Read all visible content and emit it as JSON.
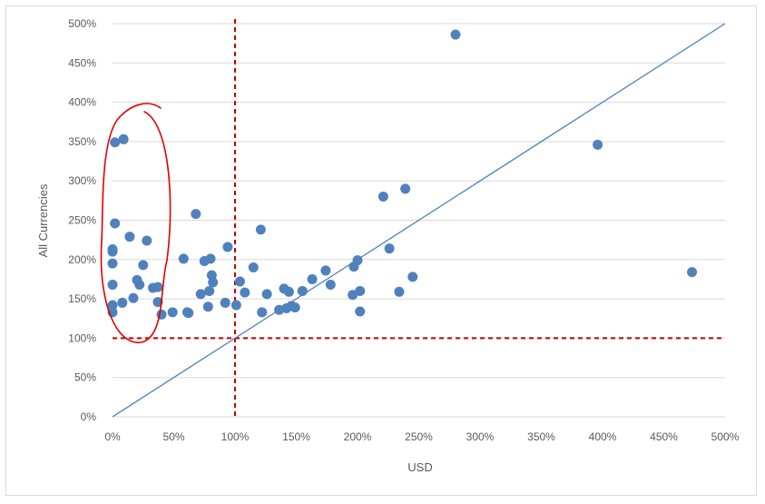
{
  "chart_data": {
    "type": "scatter",
    "title": "",
    "xlabel": "USD",
    "ylabel": "All Currencies",
    "xlim": [
      0,
      500
    ],
    "ylim": [
      0,
      500
    ],
    "x_ticks": [
      "0%",
      "50%",
      "100%",
      "150%",
      "200%",
      "250%",
      "300%",
      "350%",
      "400%",
      "450%",
      "500%"
    ],
    "y_ticks": [
      "0%",
      "50%",
      "100%",
      "150%",
      "200%",
      "250%",
      "300%",
      "350%",
      "400%",
      "450%",
      "500%"
    ],
    "grid": "horizontal",
    "legend": "none",
    "colors": {
      "points": "#4f81bd",
      "diagonal": "#4f81bd",
      "reference_lines": "#c00000",
      "highlight": "#e00000",
      "grid": "#d9d9d9",
      "text": "#595959"
    },
    "reference_lines": {
      "x": 100,
      "y": 100
    },
    "diagonal": {
      "from": [
        0,
        0
      ],
      "to": [
        500,
        500
      ]
    },
    "highlight_region": {
      "x_range": [
        -3,
        40
      ],
      "y_range": [
        95,
        395
      ]
    },
    "points": [
      {
        "x": 0,
        "y": 133
      },
      {
        "x": 0,
        "y": 142
      },
      {
        "x": 0,
        "y": 168
      },
      {
        "x": 0,
        "y": 195
      },
      {
        "x": 0,
        "y": 210
      },
      {
        "x": 0,
        "y": 213
      },
      {
        "x": 2,
        "y": 246
      },
      {
        "x": 2,
        "y": 349
      },
      {
        "x": 9,
        "y": 353
      },
      {
        "x": 8,
        "y": 145
      },
      {
        "x": 14,
        "y": 229
      },
      {
        "x": 17,
        "y": 151
      },
      {
        "x": 20,
        "y": 174
      },
      {
        "x": 22,
        "y": 168
      },
      {
        "x": 25,
        "y": 193
      },
      {
        "x": 28,
        "y": 224
      },
      {
        "x": 33,
        "y": 164
      },
      {
        "x": 37,
        "y": 165
      },
      {
        "x": 37,
        "y": 146
      },
      {
        "x": 40,
        "y": 130
      },
      {
        "x": 49,
        "y": 133
      },
      {
        "x": 58,
        "y": 201
      },
      {
        "x": 61,
        "y": 133
      },
      {
        "x": 62,
        "y": 132
      },
      {
        "x": 68,
        "y": 258
      },
      {
        "x": 72,
        "y": 156
      },
      {
        "x": 75,
        "y": 198
      },
      {
        "x": 78,
        "y": 140
      },
      {
        "x": 79,
        "y": 160
      },
      {
        "x": 80,
        "y": 201
      },
      {
        "x": 81,
        "y": 180
      },
      {
        "x": 82,
        "y": 171
      },
      {
        "x": 92,
        "y": 145
      },
      {
        "x": 94,
        "y": 216
      },
      {
        "x": 101,
        "y": 142
      },
      {
        "x": 104,
        "y": 172
      },
      {
        "x": 108,
        "y": 158
      },
      {
        "x": 115,
        "y": 190
      },
      {
        "x": 121,
        "y": 238
      },
      {
        "x": 122,
        "y": 133
      },
      {
        "x": 126,
        "y": 156
      },
      {
        "x": 136,
        "y": 136
      },
      {
        "x": 140,
        "y": 163
      },
      {
        "x": 142,
        "y": 138
      },
      {
        "x": 144,
        "y": 159
      },
      {
        "x": 146,
        "y": 141
      },
      {
        "x": 149,
        "y": 139
      },
      {
        "x": 155,
        "y": 160
      },
      {
        "x": 163,
        "y": 175
      },
      {
        "x": 174,
        "y": 186
      },
      {
        "x": 178,
        "y": 168
      },
      {
        "x": 196,
        "y": 155
      },
      {
        "x": 197,
        "y": 191
      },
      {
        "x": 200,
        "y": 199
      },
      {
        "x": 202,
        "y": 160
      },
      {
        "x": 202,
        "y": 134
      },
      {
        "x": 221,
        "y": 280
      },
      {
        "x": 226,
        "y": 214
      },
      {
        "x": 234,
        "y": 159
      },
      {
        "x": 239,
        "y": 290
      },
      {
        "x": 245,
        "y": 178
      },
      {
        "x": 280,
        "y": 486
      },
      {
        "x": 396,
        "y": 346
      },
      {
        "x": 473,
        "y": 184
      }
    ]
  }
}
